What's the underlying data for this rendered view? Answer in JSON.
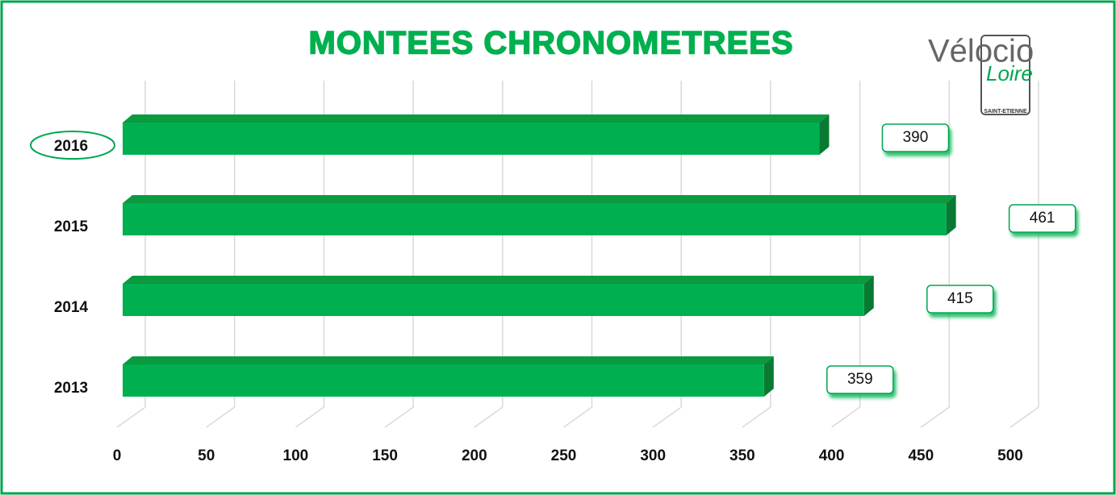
{
  "chart_data": {
    "type": "bar",
    "orientation": "horizontal",
    "title": "MONTEES CHRONOMETREES",
    "logo": {
      "name": "Vélocio",
      "sub": "Loire",
      "city": "SAINT-ETIENNE"
    },
    "categories": [
      "2016",
      "2015",
      "2014",
      "2013"
    ],
    "values": [
      390,
      461,
      415,
      359
    ],
    "color": "#00b050",
    "xlim": [
      0,
      500
    ],
    "xticks": [
      0,
      50,
      100,
      150,
      200,
      250,
      300,
      350,
      400,
      450,
      500
    ],
    "grid": true
  }
}
